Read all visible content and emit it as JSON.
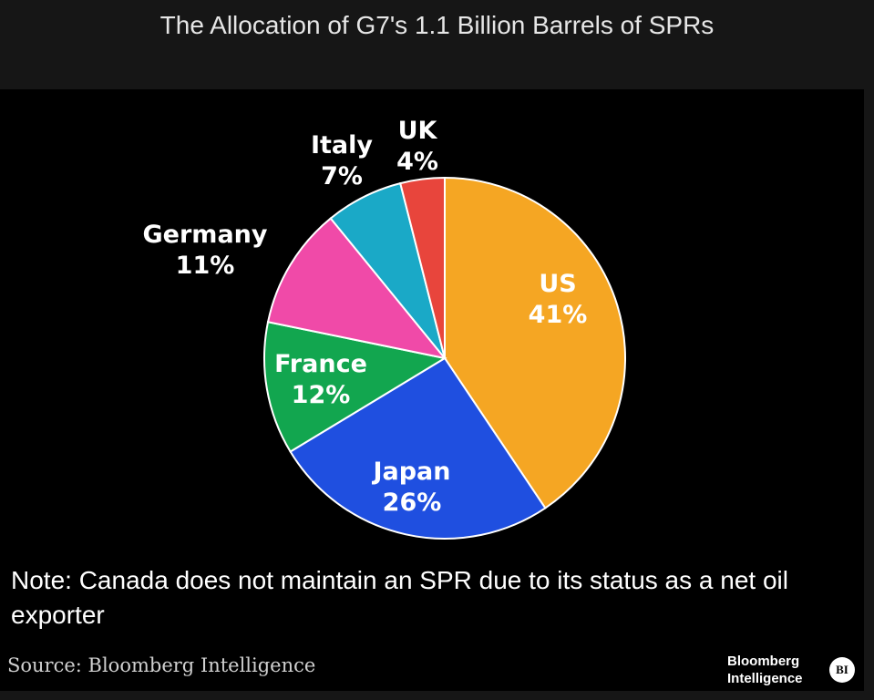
{
  "chart_data": {
    "type": "pie",
    "title": "The Allocation of G7's 1.1 Billion Barrels of SPRs",
    "slices": [
      {
        "label": "US",
        "value": 41,
        "value_label": "41%",
        "color": "#f5a623"
      },
      {
        "label": "Japan",
        "value": 26,
        "value_label": "26%",
        "color": "#1f4fe0"
      },
      {
        "label": "France",
        "value": 12,
        "value_label": "12%",
        "color": "#12a64f"
      },
      {
        "label": "Germany",
        "value": 11,
        "value_label": "11%",
        "color": "#f04aa8"
      },
      {
        "label": "Italy",
        "value": 7,
        "value_label": "7%",
        "color": "#1aa9c7"
      },
      {
        "label": "UK",
        "value": 4,
        "value_label": "4%",
        "color": "#e8453c"
      }
    ],
    "start": "12 o'clock",
    "direction": "clockwise"
  },
  "note": "Note: Canada does not maintain an SPR due to its status as a net oil exporter",
  "source": "Source: Bloomberg Intelligence",
  "brand": {
    "line1": "Bloomberg",
    "line2": "Intelligence",
    "badge": "BI"
  }
}
